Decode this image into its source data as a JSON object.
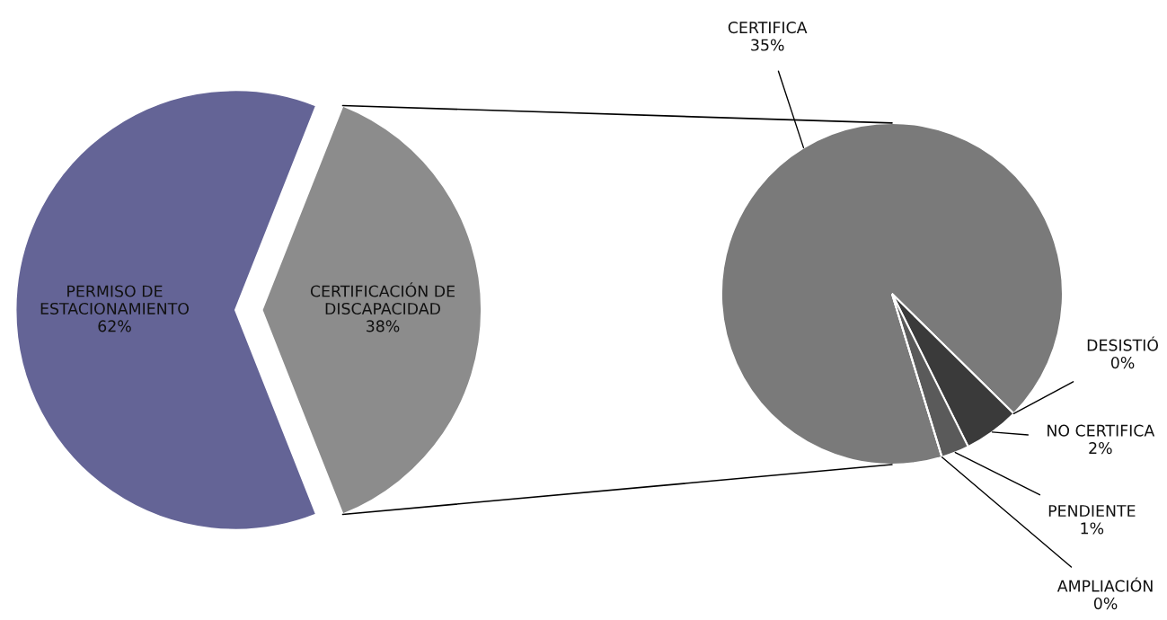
{
  "chart_data": [
    {
      "type": "pie",
      "categories": [
        "PERMISO DE\nESTACIONAMIENTO",
        "CERTIFICACIÓN DE\nDISCAPACIDAD"
      ],
      "values": [
        62,
        38
      ],
      "colors": [
        "#646496",
        "#8c8c8c"
      ],
      "value_labels": [
        "62%",
        "38%"
      ]
    },
    {
      "type": "pie",
      "categories": [
        "CERTIFICA",
        "DESISTIÓ",
        "NO CERTIFICA",
        "PENDIENTE",
        "AMPLIACIÓN"
      ],
      "values": [
        35,
        0,
        2,
        1,
        0
      ],
      "colors": [
        "#7a7a7a",
        "#b4b4b4",
        "#3a3a3a",
        "#5a5a5a",
        "#9a9a9a"
      ],
      "value_labels": [
        "35%",
        "0%",
        "2%",
        "1%",
        "0%"
      ]
    }
  ]
}
